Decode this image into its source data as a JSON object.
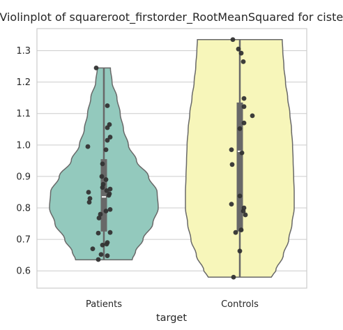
{
  "chart_data": {
    "type": "violin",
    "title": "Violinplot of squareroot_firstorder_RootMeanSquared for cistern",
    "xlabel": "target",
    "ylabel": "",
    "ylim": [
      0.545,
      1.37
    ],
    "yticks": [
      0.6,
      0.7,
      0.8,
      0.9,
      1.0,
      1.1,
      1.2,
      1.3
    ],
    "ytick_labels": [
      "0.6",
      "0.7",
      "0.8",
      "0.9",
      "1.0",
      "1.1",
      "1.2",
      "1.3"
    ],
    "grid": "horizontal",
    "categories": [
      "Patients",
      "Controls"
    ],
    "series": [
      {
        "category": "Patients",
        "color": "#93c9bd",
        "min": 0.635,
        "max": 1.245,
        "q1": 0.725,
        "median": 0.835,
        "q3": 0.955,
        "whisker_low": 0.635,
        "whisker_high": 1.245,
        "density_y": [
          0.635,
          0.66,
          0.7,
          0.75,
          0.8,
          0.85,
          0.9,
          0.95,
          1.0,
          1.05,
          1.1,
          1.15,
          1.2,
          1.245
        ],
        "density_w": [
          0.52,
          0.58,
          0.72,
          0.9,
          1.0,
          0.98,
          0.82,
          0.6,
          0.45,
          0.36,
          0.3,
          0.24,
          0.15,
          0.12
        ],
        "points": [
          {
            "x": -0.11,
            "y": 1.245
          },
          {
            "x": 0.05,
            "y": 1.125
          },
          {
            "x": 0.08,
            "y": 1.065
          },
          {
            "x": 0.05,
            "y": 1.055
          },
          {
            "x": 0.09,
            "y": 1.025
          },
          {
            "x": 0.05,
            "y": 1.015
          },
          {
            "x": -0.23,
            "y": 0.995
          },
          {
            "x": 0.03,
            "y": 0.985
          },
          {
            "x": -0.02,
            "y": 0.94
          },
          {
            "x": -0.03,
            "y": 0.9
          },
          {
            "x": 0.03,
            "y": 0.89
          },
          {
            "x": -0.01,
            "y": 0.875
          },
          {
            "x": -0.02,
            "y": 0.865
          },
          {
            "x": 0.09,
            "y": 0.86
          },
          {
            "x": 0.04,
            "y": 0.855
          },
          {
            "x": -0.22,
            "y": 0.85
          },
          {
            "x": 0.08,
            "y": 0.845
          },
          {
            "x": 0.07,
            "y": 0.84
          },
          {
            "x": -0.2,
            "y": 0.83
          },
          {
            "x": -0.21,
            "y": 0.818
          },
          {
            "x": 0.09,
            "y": 0.795
          },
          {
            "x": 0.03,
            "y": 0.79
          },
          {
            "x": -0.05,
            "y": 0.78
          },
          {
            "x": -0.07,
            "y": 0.768
          },
          {
            "x": 0.09,
            "y": 0.722
          },
          {
            "x": -0.08,
            "y": 0.72
          },
          {
            "x": 0.05,
            "y": 0.69
          },
          {
            "x": 0.04,
            "y": 0.685
          },
          {
            "x": -0.02,
            "y": 0.682
          },
          {
            "x": -0.16,
            "y": 0.67
          },
          {
            "x": -0.04,
            "y": 0.652
          },
          {
            "x": 0.05,
            "y": 0.648
          },
          {
            "x": -0.08,
            "y": 0.636
          }
        ]
      },
      {
        "category": "Controls",
        "color": "#f7f6ba",
        "min": 0.58,
        "max": 1.335,
        "q1": 0.725,
        "median": 0.98,
        "q3": 1.135,
        "whisker_low": 0.58,
        "whisker_high": 1.335,
        "density_y": [
          0.58,
          0.6,
          0.65,
          0.7,
          0.75,
          0.8,
          0.85,
          0.9,
          0.95,
          1.0,
          1.05,
          1.1,
          1.15,
          1.2,
          1.25,
          1.3,
          1.335
        ],
        "density_w": [
          0.58,
          0.66,
          0.8,
          0.9,
          0.96,
          1.0,
          1.0,
          0.99,
          0.98,
          0.97,
          0.95,
          0.92,
          0.88,
          0.84,
          0.81,
          0.79,
          0.78
        ],
        "points": [
          {
            "x": -0.1,
            "y": 1.335
          },
          {
            "x": -0.02,
            "y": 1.305
          },
          {
            "x": 0.02,
            "y": 1.292
          },
          {
            "x": 0.05,
            "y": 1.265
          },
          {
            "x": 0.06,
            "y": 1.148
          },
          {
            "x": 0.06,
            "y": 1.122
          },
          {
            "x": 0.18,
            "y": 1.093
          },
          {
            "x": 0.06,
            "y": 1.07
          },
          {
            "x": 0.0,
            "y": 1.052
          },
          {
            "x": -0.12,
            "y": 0.985
          },
          {
            "x": 0.03,
            "y": 0.975
          },
          {
            "x": -0.11,
            "y": 0.938
          },
          {
            "x": 0.0,
            "y": 0.838
          },
          {
            "x": -0.12,
            "y": 0.812
          },
          {
            "x": 0.06,
            "y": 0.8
          },
          {
            "x": 0.05,
            "y": 0.79
          },
          {
            "x": 0.08,
            "y": 0.778
          },
          {
            "x": 0.02,
            "y": 0.73
          },
          {
            "x": -0.06,
            "y": 0.722
          },
          {
            "x": 0.0,
            "y": 0.663
          },
          {
            "x": -0.09,
            "y": 0.58
          }
        ]
      }
    ]
  }
}
